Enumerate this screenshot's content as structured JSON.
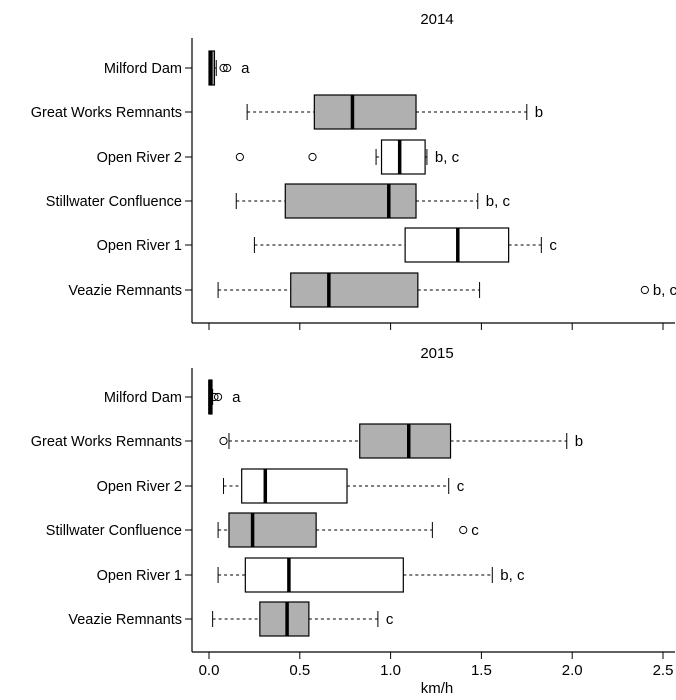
{
  "chart_data": [
    {
      "type": "boxplot",
      "title": "2014",
      "categories": [
        "Milford Dam",
        "Great Works Remnants",
        "Open River 2",
        "Stillwater Confluence",
        "Open River 1",
        "Veazie Remnants"
      ],
      "boxes": [
        {
          "name": "Milford Dam",
          "whisker_low": 0.0,
          "q1": 0.0,
          "median": 0.01,
          "q3": 0.03,
          "whisker_high": 0.04,
          "outliers": [
            0.08,
            0.1
          ],
          "fill": "#b0b0b0",
          "letter": "a"
        },
        {
          "name": "Great Works Remnants",
          "whisker_low": 0.21,
          "q1": 0.58,
          "median": 0.79,
          "q3": 1.14,
          "whisker_high": 1.75,
          "outliers": [],
          "fill": "#b0b0b0",
          "letter": "b"
        },
        {
          "name": "Open River 2",
          "whisker_low": 0.92,
          "q1": 0.95,
          "median": 1.05,
          "q3": 1.19,
          "whisker_high": 1.2,
          "outliers": [
            0.17,
            0.57
          ],
          "fill": "#ffffff",
          "letter": "b, c"
        },
        {
          "name": "Stillwater Confluence",
          "whisker_low": 0.15,
          "q1": 0.42,
          "median": 0.99,
          "q3": 1.14,
          "whisker_high": 1.48,
          "outliers": [],
          "fill": "#b0b0b0",
          "letter": "b, c"
        },
        {
          "name": "Open River 1",
          "whisker_low": 0.25,
          "q1": 1.08,
          "median": 1.37,
          "q3": 1.65,
          "whisker_high": 1.83,
          "outliers": [],
          "fill": "#ffffff",
          "letter": "c"
        },
        {
          "name": "Veazie Remnants",
          "whisker_low": 0.05,
          "q1": 0.45,
          "median": 0.66,
          "q3": 1.15,
          "whisker_high": 1.49,
          "outliers": [
            2.4
          ],
          "fill": "#b0b0b0",
          "letter": "b, c"
        }
      ]
    },
    {
      "type": "boxplot",
      "title": "2015",
      "categories": [
        "Milford Dam",
        "Great Works Remnants",
        "Open River 2",
        "Stillwater Confluence",
        "Open River 1",
        "Veazie Remnants"
      ],
      "boxes": [
        {
          "name": "Milford Dam",
          "whisker_low": 0.0,
          "q1": 0.0,
          "median": 0.005,
          "q3": 0.015,
          "whisker_high": 0.02,
          "outliers": [
            0.03,
            0.05
          ],
          "fill": "#b0b0b0",
          "letter": "a"
        },
        {
          "name": "Great Works Remnants",
          "whisker_low": 0.11,
          "q1": 0.83,
          "median": 1.1,
          "q3": 1.33,
          "whisker_high": 1.97,
          "outliers": [
            0.08
          ],
          "fill": "#b0b0b0",
          "letter": "b"
        },
        {
          "name": "Open River 2",
          "whisker_low": 0.08,
          "q1": 0.18,
          "median": 0.31,
          "q3": 0.76,
          "whisker_high": 1.32,
          "outliers": [],
          "fill": "#ffffff",
          "letter": "c"
        },
        {
          "name": "Stillwater Confluence",
          "whisker_low": 0.05,
          "q1": 0.11,
          "median": 0.24,
          "q3": 0.59,
          "whisker_high": 1.23,
          "outliers": [
            1.4
          ],
          "fill": "#b0b0b0",
          "letter": "c"
        },
        {
          "name": "Open River 1",
          "whisker_low": 0.05,
          "q1": 0.2,
          "median": 0.44,
          "q3": 1.07,
          "whisker_high": 1.56,
          "outliers": [],
          "fill": "#ffffff",
          "letter": "b, c"
        },
        {
          "name": "Veazie Remnants",
          "whisker_low": 0.02,
          "q1": 0.28,
          "median": 0.43,
          "q3": 0.55,
          "whisker_high": 0.93,
          "outliers": [],
          "fill": "#b0b0b0",
          "letter": "c"
        }
      ]
    }
  ],
  "x_axis": {
    "label": "km/h",
    "xlim": [
      -0.1,
      2.55
    ],
    "ticks": [
      0.0,
      0.5,
      1.0,
      1.5,
      2.0,
      2.5
    ],
    "tick_labels": [
      "0.0",
      "0.5",
      "1.0",
      "1.5",
      "2.0",
      "2.5"
    ]
  },
  "colors": {
    "shaded_box": "#b0b0b0",
    "open_box": "#ffffff",
    "line": "#000000"
  }
}
